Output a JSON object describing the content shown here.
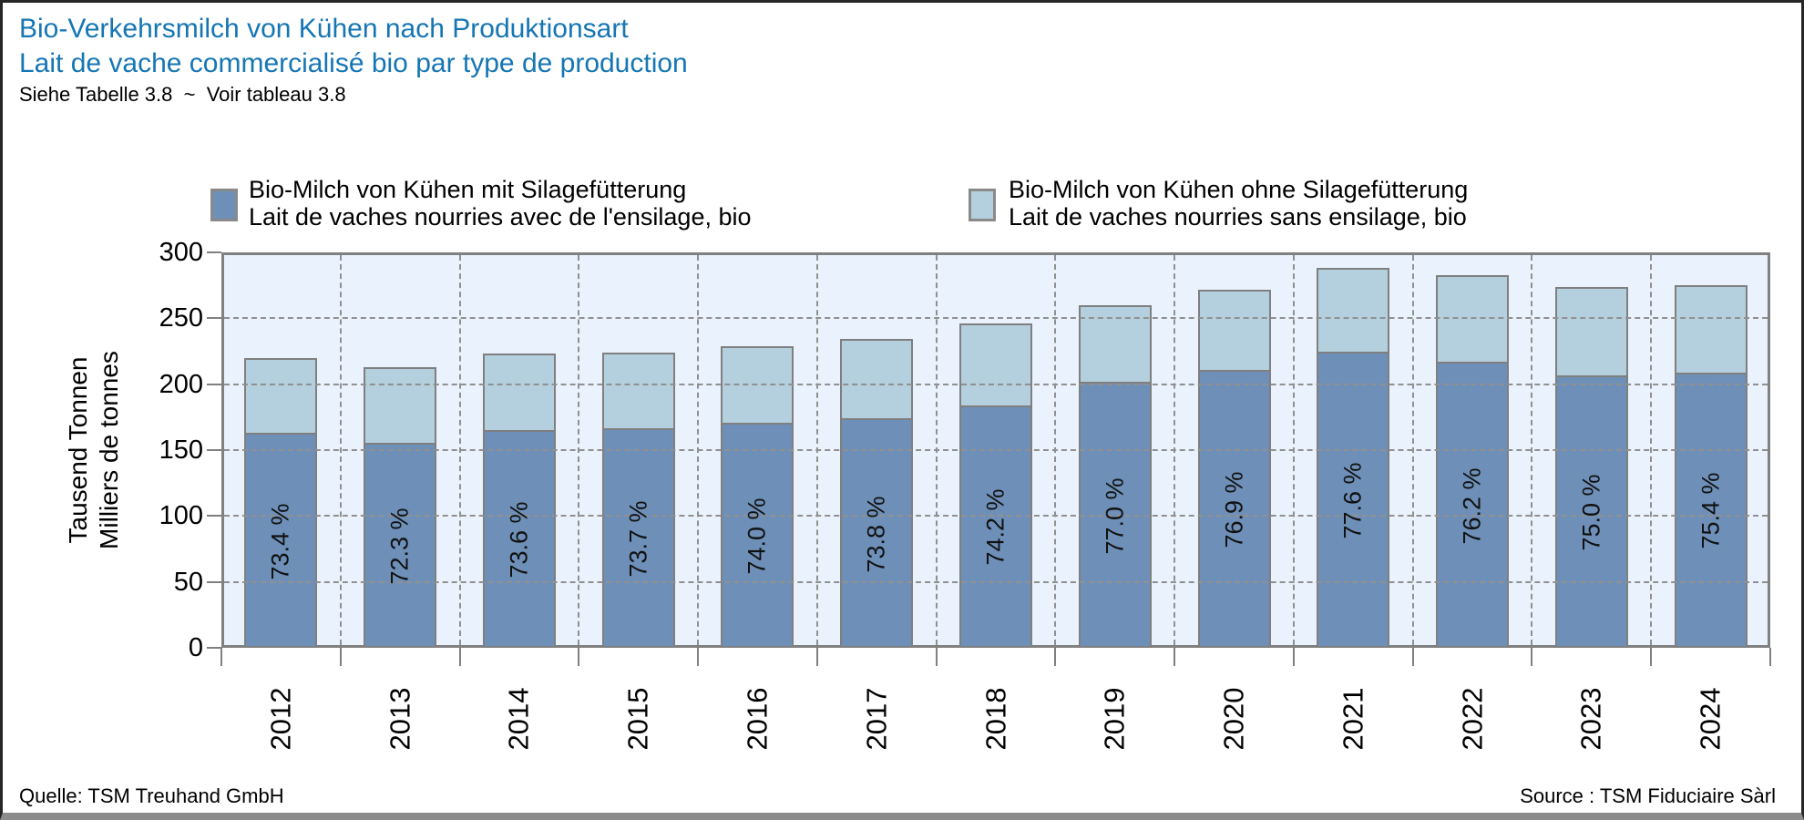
{
  "header": {
    "title_de": "Bio-Verkehrsmilch von Kühen nach Produktionsart",
    "title_fr": "Lait de vache commercialisé bio par type de production",
    "subtitle": "Siehe Tabelle 3.8  ~  Voir tableau 3.8"
  },
  "legend": {
    "items": [
      {
        "label_de": "Bio-Milch von Kühen mit Silagefütterung",
        "label_fr": "Lait de vaches nourries avec de l'ensilage, bio",
        "color": "#6E90B8"
      },
      {
        "label_de": "Bio-Milch von Kühen ohne Silagefütterung",
        "label_fr": "Lait de vaches nourries sans ensilage, bio",
        "color": "#B4D0DE"
      }
    ]
  },
  "y_axis": {
    "title_de": "Tausend Tonnen",
    "title_fr": "Milliers de tonnes"
  },
  "footer": {
    "source_de": "Quelle: TSM Treuhand GmbH",
    "source_fr": "Source : TSM Fiduciaire Sàrl"
  },
  "chart_data": {
    "type": "bar",
    "stacked": true,
    "title": "Bio-Verkehrsmilch von Kühen nach Produktionsart / Lait de vache commercialisé bio par type de production",
    "ylabel": "Tausend Tonnen / Milliers de tonnes",
    "ylim": [
      0,
      300
    ],
    "yticks": [
      0,
      50,
      100,
      150,
      200,
      250,
      300
    ],
    "grid": "dashed",
    "legend_position": "top",
    "plot_bg": "#EAF3FD",
    "categories": [
      "2012",
      "2013",
      "2014",
      "2015",
      "2016",
      "2017",
      "2018",
      "2019",
      "2020",
      "2021",
      "2022",
      "2023",
      "2024"
    ],
    "series": [
      {
        "name": "Bio-Milch von Kühen mit Silagefütterung / Lait de vaches nourries avec de l'ensilage, bio",
        "color": "#6E90B8",
        "values": [
          161.5,
          154.0,
          164.1,
          165.1,
          169.5,
          172.7,
          182.5,
          200.2,
          209.2,
          223.5,
          215.6,
          205.5,
          207.4
        ]
      },
      {
        "name": "Bio-Milch von Kühen ohne Silagefütterung / Lait de vaches nourries sans ensilage, bio",
        "color": "#B4D0DE",
        "values": [
          58.5,
          59.0,
          58.9,
          58.9,
          59.5,
          61.3,
          63.5,
          59.8,
          62.8,
          64.5,
          67.4,
          68.5,
          67.6
        ]
      }
    ],
    "totals": [
      220,
      213,
      223,
      224,
      229,
      234,
      246,
      260,
      272,
      288,
      283,
      274,
      275
    ],
    "bar_labels": [
      "73.4 %",
      "72.3 %",
      "73.6 %",
      "73.7 %",
      "74.0 %",
      "73.8 %",
      "74.2 %",
      "77.0 %",
      "76.9 %",
      "77.6 %",
      "76.2 %",
      "75.0 %",
      "75.4 %"
    ]
  }
}
